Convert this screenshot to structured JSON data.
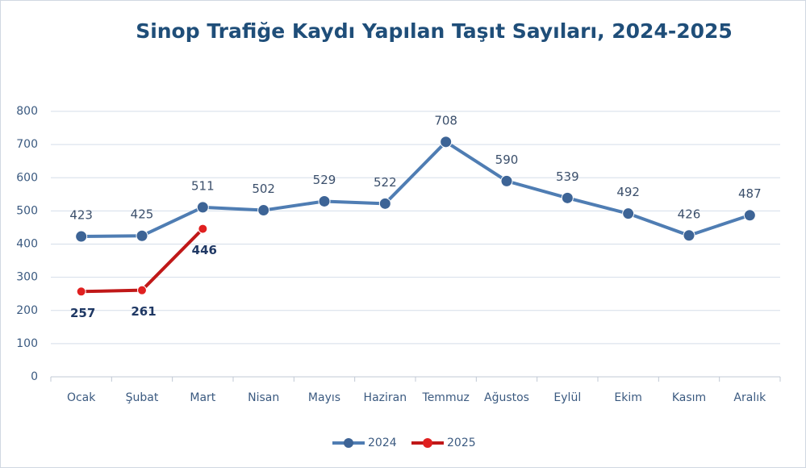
{
  "chart_data": {
    "type": "line",
    "title": "Sinop Trafiğe Kaydı Yapılan Taşıt Sayıları, 2024-2025",
    "categories": [
      "Ocak",
      "Şubat",
      "Mart",
      "Nisan",
      "Mayıs",
      "Haziran",
      "Temmuz",
      "Ağustos",
      "Eylül",
      "Ekim",
      "Kasım",
      "Aralık"
    ],
    "series": [
      {
        "name": "2024",
        "color": "#4f7db3",
        "values": [
          423,
          425,
          511,
          502,
          529,
          522,
          708,
          590,
          539,
          492,
          426,
          487
        ]
      },
      {
        "name": "2025",
        "color": "#c01818",
        "values": [
          257,
          261,
          446,
          null,
          null,
          null,
          null,
          null,
          null,
          null,
          null,
          null
        ]
      }
    ],
    "ylim": [
      0,
      800
    ],
    "yticks": [
      0,
      100,
      200,
      300,
      400,
      500,
      600,
      700,
      800
    ],
    "grid": true,
    "legend": "bottom"
  }
}
